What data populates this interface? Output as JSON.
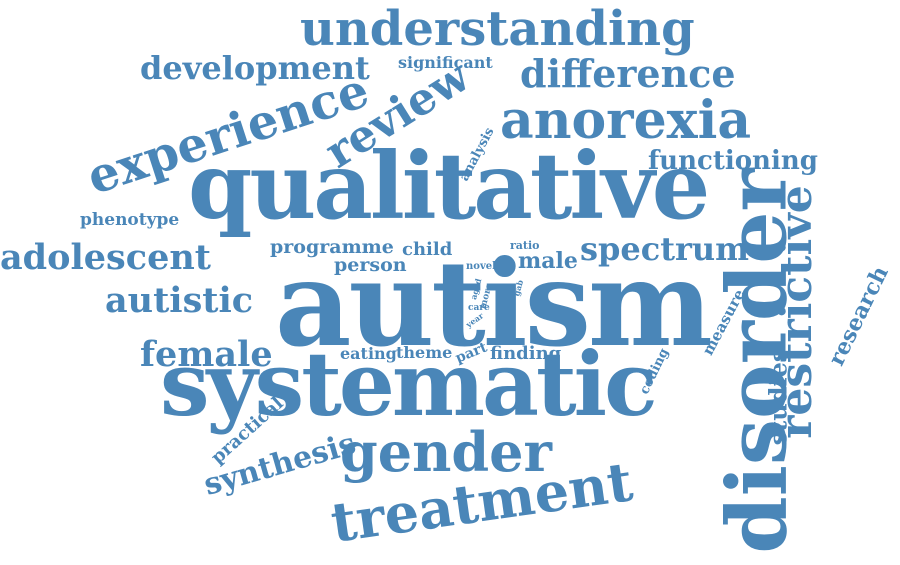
{
  "word_cloud": {
    "color": "#4a86b8",
    "background": "#ffffff",
    "words": [
      "autism",
      "qualitative",
      "systematic",
      "disorder",
      "treatment",
      "gender",
      "understanding",
      "anorexia",
      "experience",
      "review",
      "difference",
      "development",
      "adolescent",
      "autistic",
      "female",
      "restrictive",
      "spectrum",
      "functioning",
      "synthesis",
      "studies",
      "research",
      "programme",
      "phenotype",
      "significant",
      "person",
      "child",
      "male",
      "eating",
      "theme",
      "part",
      "finding",
      "practical",
      "measure",
      "coding",
      "analysis",
      "novel",
      "ratio",
      "aged",
      "care",
      "more",
      "year",
      "gab"
    ]
  }
}
